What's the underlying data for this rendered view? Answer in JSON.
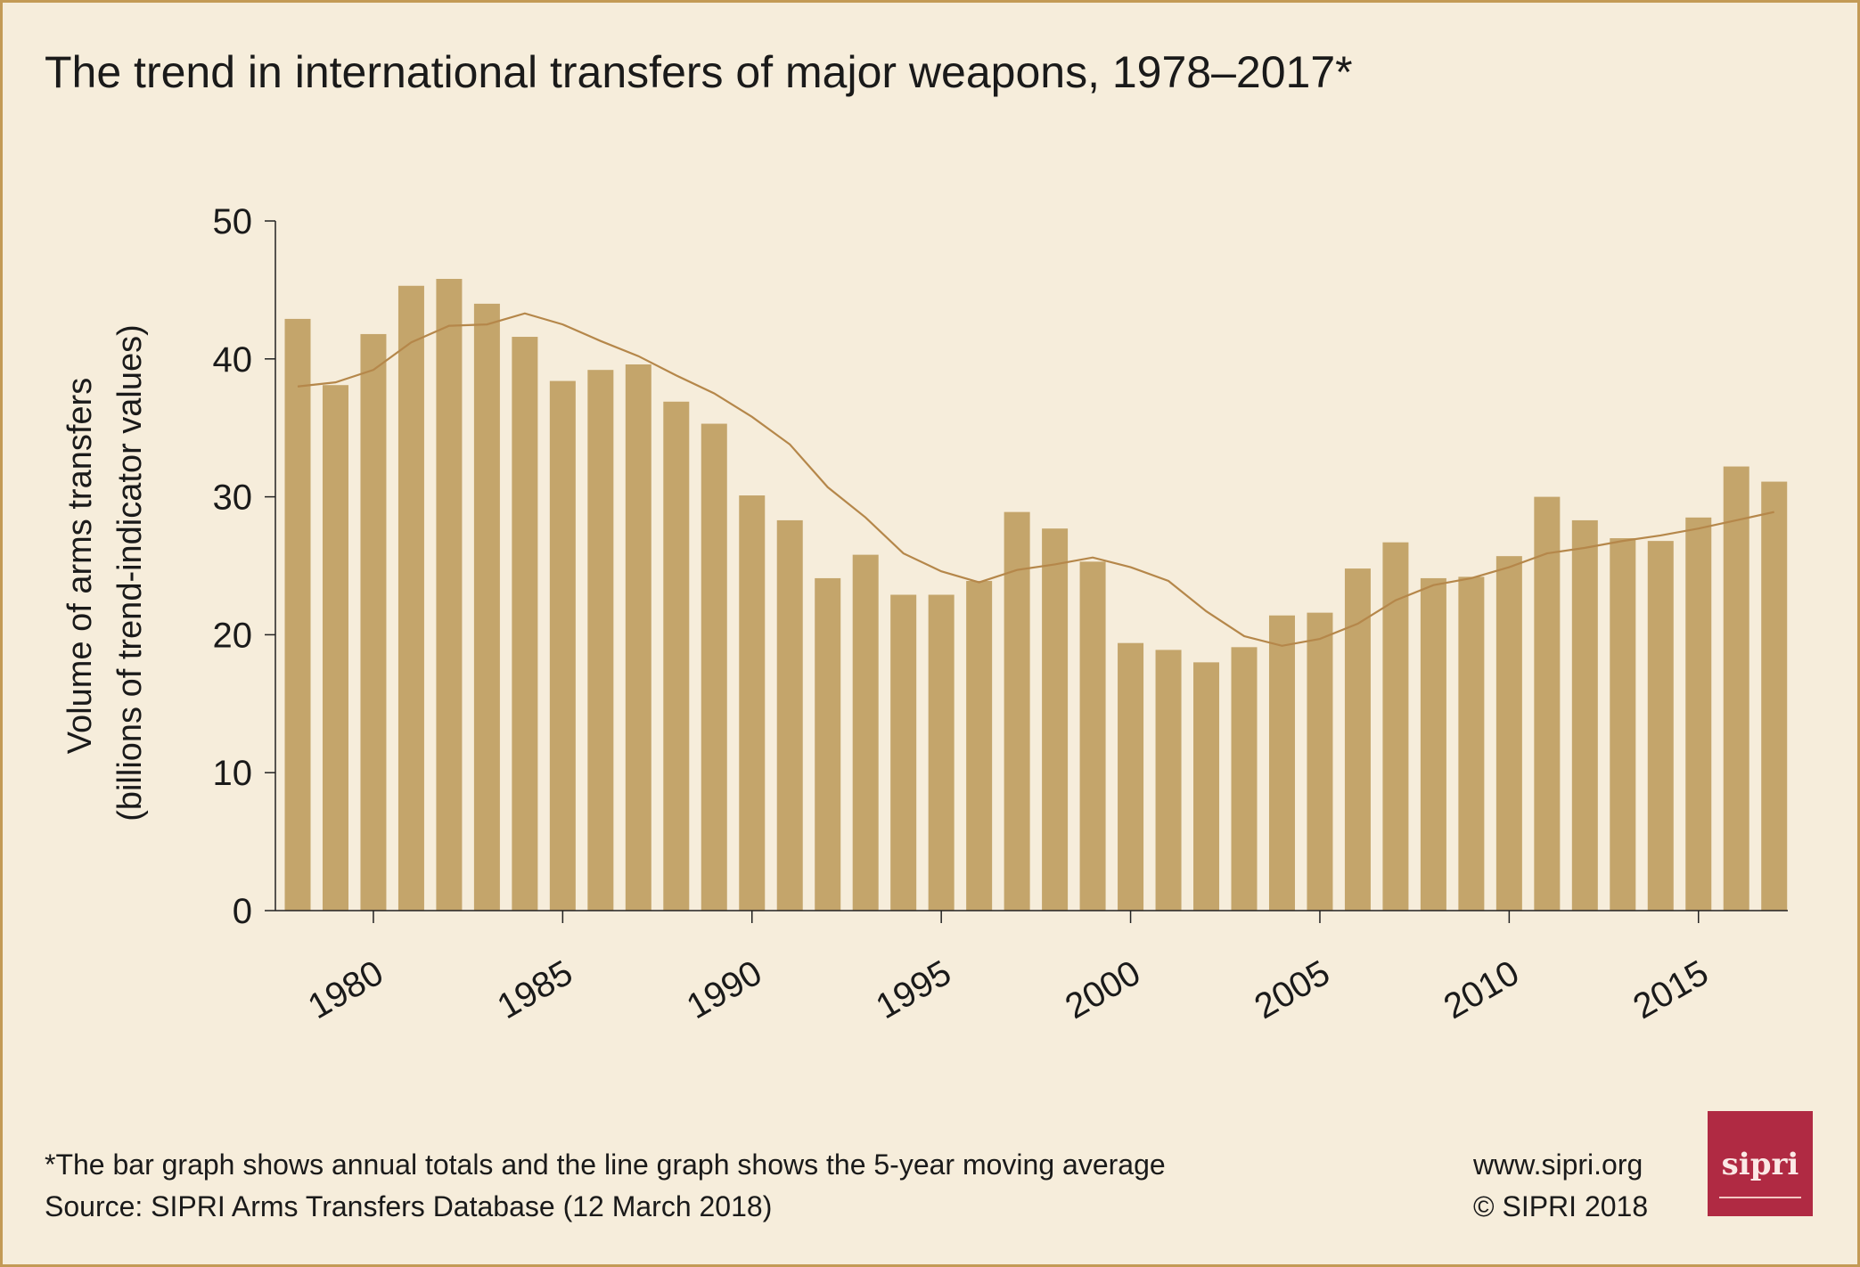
{
  "chart_data": {
    "type": "bar",
    "title": "The trend in international transfers of major weapons, 1978–2017*",
    "ylabel": "Volume of arms transfers",
    "ylabel2": "(billions of trend-indicator values)",
    "xlabel": "",
    "ylim": [
      0,
      50
    ],
    "yticks": [
      "0",
      "10",
      "20",
      "30",
      "40",
      "50"
    ],
    "xticks": [
      "1980",
      "1985",
      "1990",
      "1995",
      "2000",
      "2005",
      "2010",
      "2015"
    ],
    "grid": false,
    "x": [
      1978,
      1979,
      1980,
      1981,
      1982,
      1983,
      1984,
      1985,
      1986,
      1987,
      1988,
      1989,
      1990,
      1991,
      1992,
      1993,
      1994,
      1995,
      1996,
      1997,
      1998,
      1999,
      2000,
      2001,
      2002,
      2003,
      2004,
      2005,
      2006,
      2007,
      2008,
      2009,
      2010,
      2011,
      2012,
      2013,
      2014,
      2015,
      2016,
      2017
    ],
    "series": [
      {
        "type": "bar",
        "values": [
          42.9,
          38.1,
          41.8,
          45.3,
          45.8,
          44.0,
          41.6,
          38.4,
          39.2,
          39.6,
          36.9,
          35.3,
          30.1,
          28.3,
          24.1,
          25.8,
          22.9,
          22.9,
          23.9,
          28.9,
          27.7,
          25.3,
          19.4,
          18.9,
          18.0,
          19.1,
          21.4,
          21.6,
          24.8,
          26.7,
          24.1,
          24.2,
          25.7,
          30.0,
          28.3,
          27.0,
          26.8,
          28.5,
          32.2,
          31.1
        ],
        "color": "#c4a56b"
      },
      {
        "type": "line",
        "values": [
          38.0,
          38.3,
          39.2,
          41.2,
          42.4,
          42.5,
          43.3,
          42.5,
          41.3,
          40.2,
          38.8,
          37.5,
          35.8,
          33.8,
          30.7,
          28.5,
          25.9,
          24.6,
          23.8,
          24.7,
          25.1,
          25.6,
          24.9,
          23.9,
          21.7,
          19.9,
          19.2,
          19.7,
          20.8,
          22.5,
          23.6,
          24.1,
          24.9,
          25.9,
          26.3,
          26.8,
          27.2,
          27.7,
          28.3,
          28.9
        ],
        "color": "#b5874a"
      }
    ]
  },
  "footer": {
    "note": "*The bar graph shows annual totals and the line graph shows the 5-year moving average",
    "source": "Source: SIPRI Arms Transfers Database (12 March 2018)",
    "website": "www.sipri.org",
    "copyright": "© SIPRI 2018",
    "logo_text": "sipri",
    "logo_color": "#b02a43"
  },
  "colors": {
    "background": "#f6eddb",
    "frame": "#c39a55"
  }
}
